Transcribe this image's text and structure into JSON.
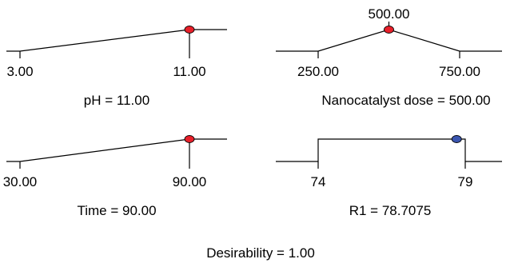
{
  "chart_data": [
    {
      "type": "desirability_ramp",
      "factor": "pH",
      "caption": "pH = 11.00",
      "range": [
        3.0,
        11.0
      ],
      "tick_labels": [
        "3.00",
        "11.00"
      ],
      "optimum": 11.0,
      "optimum_label": "",
      "shape": "increasing",
      "marker_color": "#e8202a"
    },
    {
      "type": "desirability_ramp",
      "factor": "Nanocatalyst dose",
      "caption": "Nanocatalyst dose = 500.00",
      "range": [
        250.0,
        750.0
      ],
      "tick_labels": [
        "250.00",
        "750.00"
      ],
      "optimum": 500.0,
      "optimum_label": "500.00",
      "shape": "peak",
      "marker_color": "#e8202a"
    },
    {
      "type": "desirability_ramp",
      "factor": "Time",
      "caption": "Time = 90.00",
      "range": [
        30.0,
        90.0
      ],
      "tick_labels": [
        "30.00",
        "90.00"
      ],
      "optimum": 90.0,
      "optimum_label": "",
      "shape": "increasing",
      "marker_color": "#e8202a"
    },
    {
      "type": "desirability_ramp",
      "factor": "R1",
      "caption": "R1 = 78.7075",
      "range": [
        74,
        79
      ],
      "tick_labels": [
        "74",
        "79"
      ],
      "optimum": 78.7075,
      "optimum_label": "",
      "shape": "in-range",
      "marker_color": "#3b56b0"
    }
  ],
  "overall": {
    "label": "Desirability = 1.00",
    "value": 1.0
  }
}
